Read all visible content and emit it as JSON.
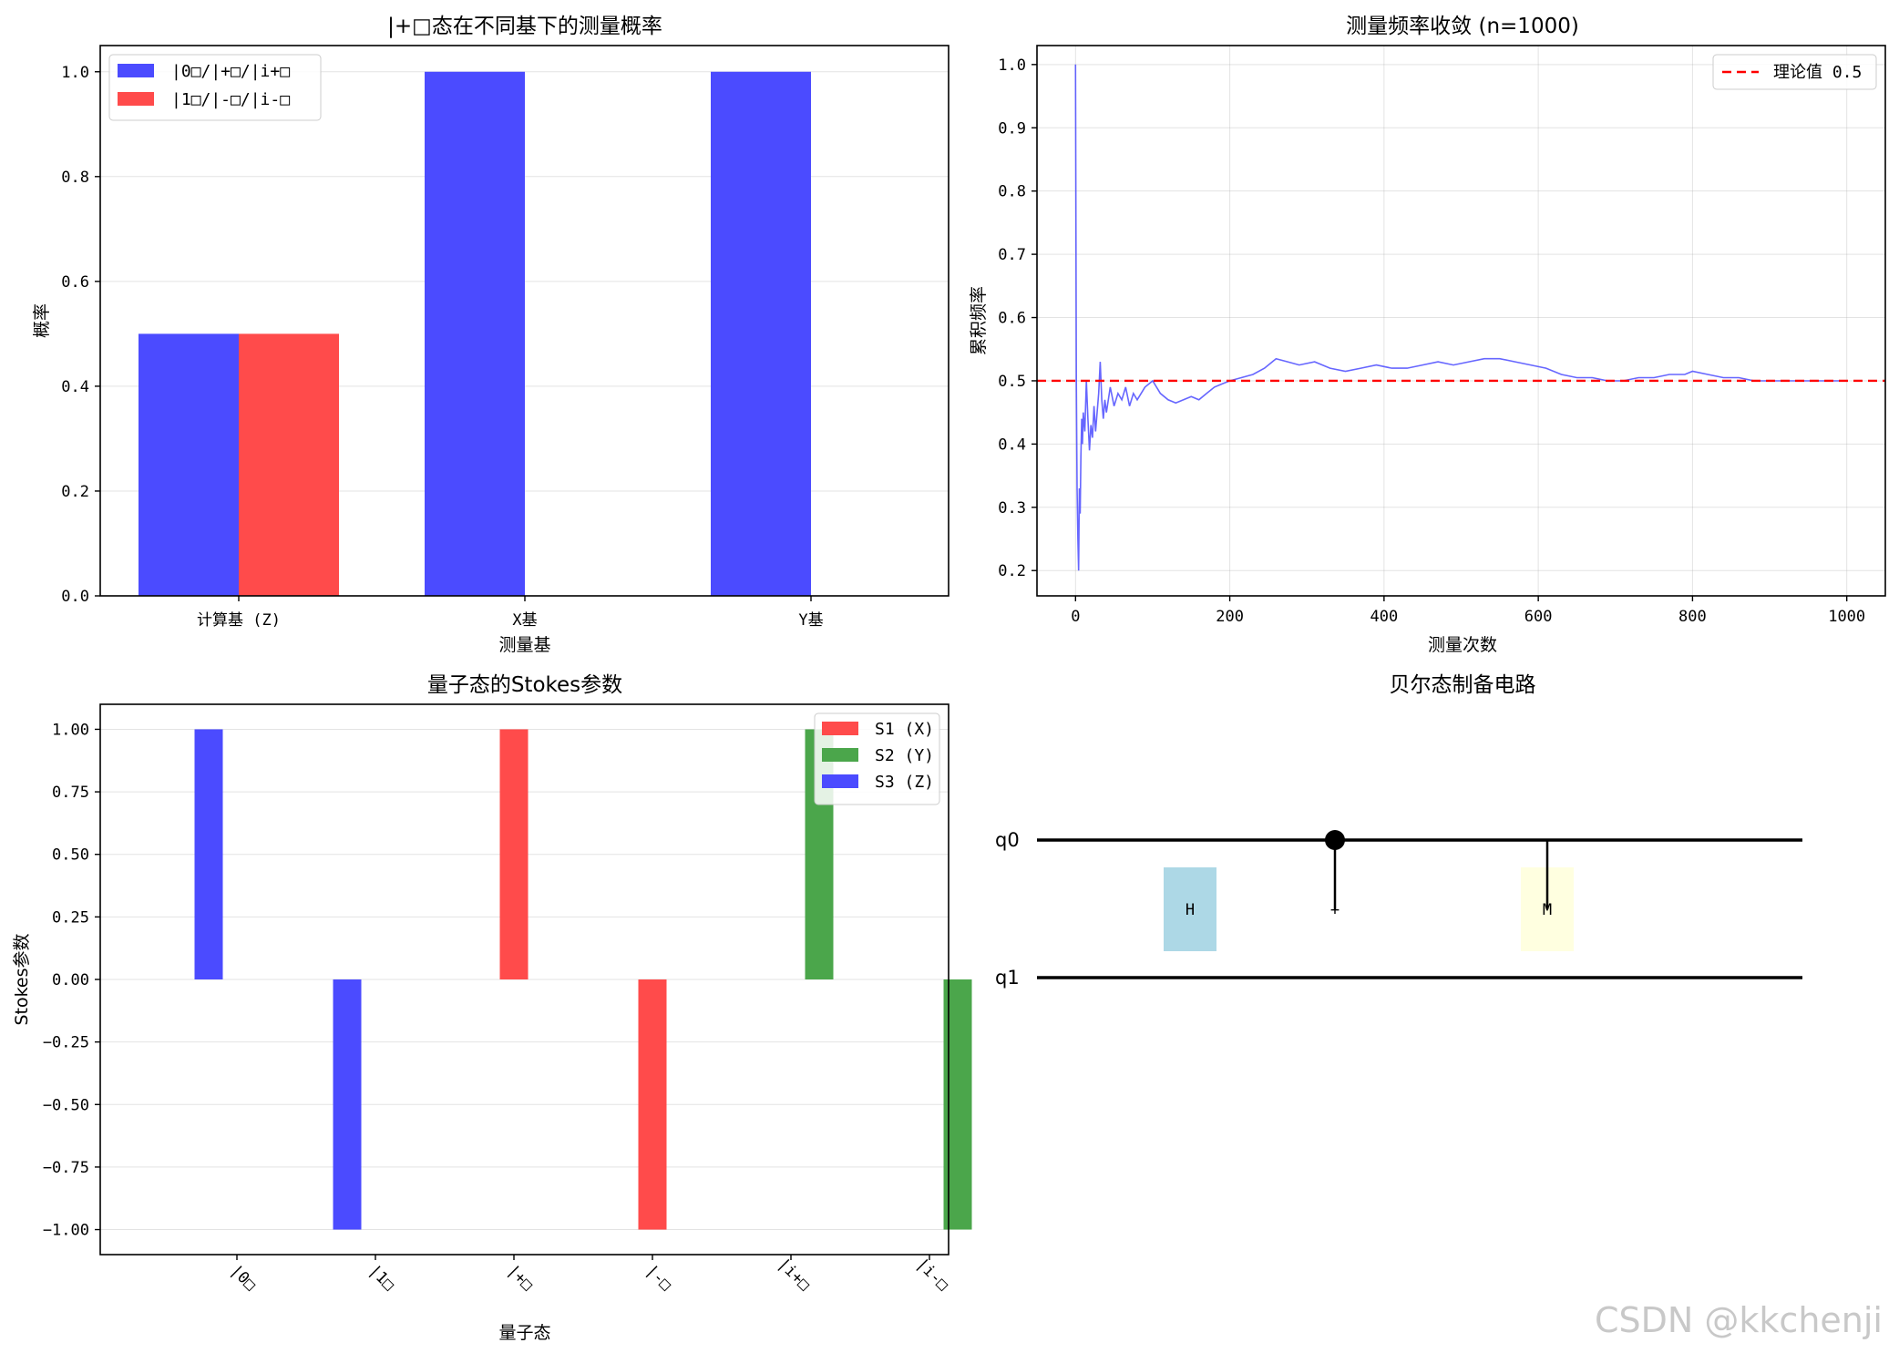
{
  "chart_data": [
    {
      "type": "bar",
      "title": "|+□态在不同基下的测量概率",
      "xlabel": "测量基",
      "ylabel": "概率",
      "categories": [
        "计算基 (Z)",
        "X基",
        "Y基"
      ],
      "series": [
        {
          "name": "|0□/|+□/|i+□",
          "color": "#4b4bff",
          "values": [
            0.5,
            1.0,
            1.0
          ]
        },
        {
          "name": "|1□/|-□/|i-□",
          "color": "#ff4b4b",
          "values": [
            0.5,
            0.0,
            0.0
          ]
        }
      ],
      "ylim": [
        0,
        1.05
      ],
      "yticks": [
        "0.0",
        "0.2",
        "0.4",
        "0.6",
        "0.8",
        "1.0"
      ],
      "grid": true,
      "legend": "top-left"
    },
    {
      "type": "line",
      "title": "测量频率收敛 (n=1000)",
      "xlabel": "测量次数",
      "ylabel": "累积频率",
      "xlim": [
        -50,
        1050
      ],
      "ylim": [
        0.16,
        1.03
      ],
      "xticks": [
        "0",
        "200",
        "400",
        "600",
        "800",
        "1000"
      ],
      "yticks": [
        "0.2",
        "0.3",
        "0.4",
        "0.5",
        "0.6",
        "0.7",
        "0.8",
        "0.9",
        "1.0"
      ],
      "series": [
        {
          "name": "",
          "color": "#4b4bff",
          "x": [
            0,
            1,
            2,
            3,
            4,
            5,
            6,
            7,
            8,
            9,
            10,
            12,
            14,
            16,
            18,
            20,
            22,
            24,
            26,
            28,
            30,
            32,
            34,
            36,
            38,
            40,
            45,
            50,
            55,
            60,
            65,
            70,
            75,
            80,
            90,
            100,
            110,
            120,
            130,
            140,
            150,
            160,
            170,
            180,
            190,
            200,
            215,
            230,
            245,
            260,
            275,
            290,
            310,
            330,
            350,
            370,
            390,
            410,
            430,
            450,
            470,
            490,
            510,
            530,
            550,
            570,
            590,
            610,
            630,
            650,
            670,
            690,
            710,
            730,
            750,
            770,
            790,
            800,
            820,
            840,
            860,
            880,
            900,
            920,
            940,
            960,
            980,
            1000
          ],
          "y": [
            1.0,
            0.5,
            0.33,
            0.25,
            0.2,
            0.33,
            0.29,
            0.38,
            0.44,
            0.4,
            0.45,
            0.42,
            0.5,
            0.44,
            0.39,
            0.43,
            0.41,
            0.46,
            0.42,
            0.45,
            0.48,
            0.53,
            0.47,
            0.44,
            0.47,
            0.45,
            0.49,
            0.46,
            0.48,
            0.47,
            0.49,
            0.46,
            0.48,
            0.47,
            0.49,
            0.5,
            0.48,
            0.47,
            0.465,
            0.47,
            0.475,
            0.47,
            0.48,
            0.49,
            0.495,
            0.5,
            0.505,
            0.51,
            0.52,
            0.535,
            0.53,
            0.525,
            0.53,
            0.52,
            0.515,
            0.52,
            0.525,
            0.52,
            0.52,
            0.525,
            0.53,
            0.525,
            0.53,
            0.535,
            0.535,
            0.53,
            0.525,
            0.52,
            0.51,
            0.505,
            0.505,
            0.5,
            0.5,
            0.505,
            0.505,
            0.51,
            0.51,
            0.515,
            0.51,
            0.505,
            0.505,
            0.5,
            0.5,
            0.5,
            0.5,
            0.5,
            0.5,
            0.5
          ]
        },
        {
          "name": "理论值 0.5",
          "color": "#ff0000",
          "value": 0.5,
          "style": "dashed"
        }
      ],
      "grid": true,
      "legend": "top-right"
    },
    {
      "type": "bar",
      "title": "量子态的Stokes参数",
      "xlabel": "量子态",
      "ylabel": "Stokes参数",
      "categories": [
        "|0□",
        "|1□",
        "|+□",
        "|-□",
        "|i+□",
        "|i-□"
      ],
      "series": [
        {
          "name": "S1 (X)",
          "color": "#ff4b4b",
          "values": [
            0,
            0,
            1,
            -1,
            0,
            0
          ]
        },
        {
          "name": "S2 (Y)",
          "color": "#4ba64b",
          "values": [
            0,
            0,
            0,
            0,
            1,
            -1
          ]
        },
        {
          "name": "S3 (Z)",
          "color": "#4b4bff",
          "values": [
            1,
            -1,
            0,
            0,
            0,
            0
          ]
        }
      ],
      "ylim": [
        -1.1,
        1.1
      ],
      "yticks": [
        "-1.00",
        "-0.75",
        "-0.50",
        "-0.25",
        "0.00",
        "0.25",
        "0.50",
        "0.75",
        "1.00"
      ],
      "grid": true,
      "legend": "top-right"
    },
    {
      "type": "diagram",
      "title": "贝尔态制备电路",
      "qubits": [
        "q0",
        "q1"
      ],
      "gates": [
        {
          "label": "H",
          "color": "#add8e6"
        },
        {
          "label": "+",
          "color": "#ffffff"
        },
        {
          "label": "M",
          "color": "#ffffe0"
        }
      ]
    }
  ],
  "watermark": "CSDN @kkchenji"
}
